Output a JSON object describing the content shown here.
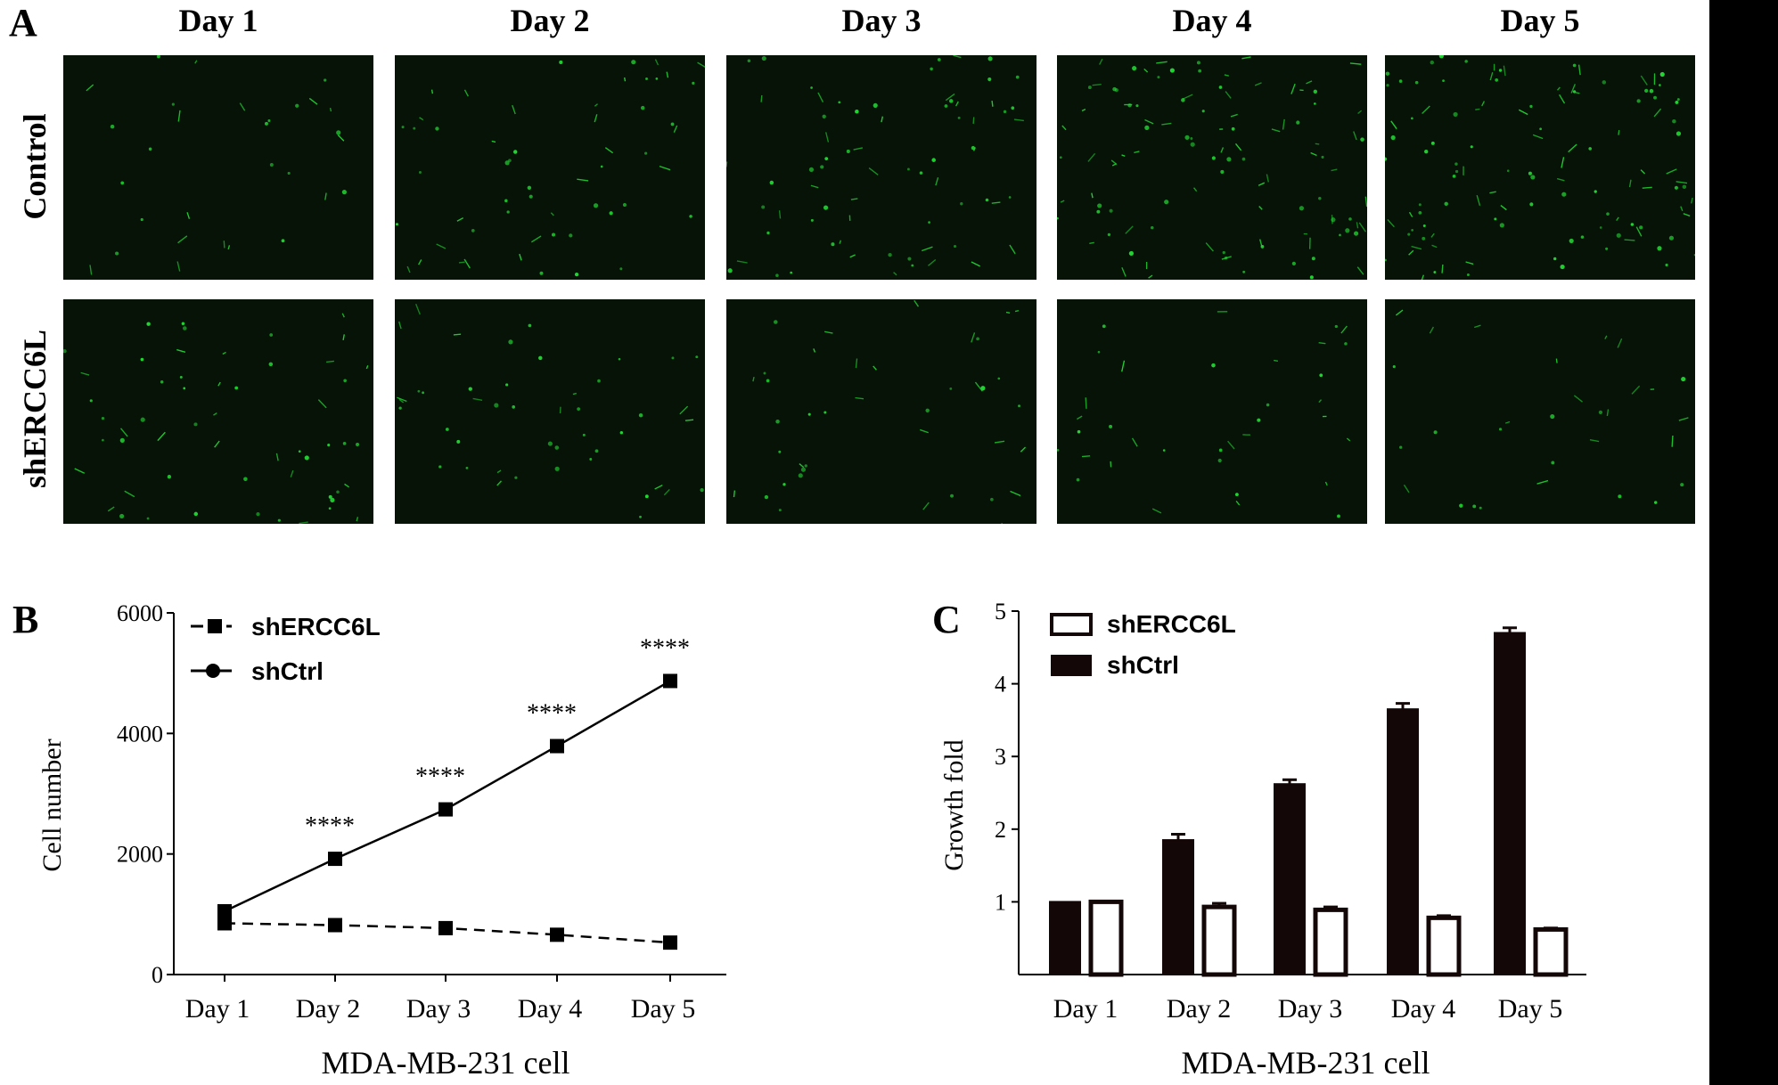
{
  "panel_a": {
    "letter": "A",
    "days": [
      "Day 1",
      "Day 2",
      "Day 3",
      "Day 4",
      "Day 5"
    ],
    "rows": [
      "Control",
      "shERCC6L"
    ],
    "image_bg": "#061306",
    "cell_color": "#22d633",
    "densities": [
      [
        30,
        55,
        70,
        105,
        115
      ],
      [
        55,
        45,
        40,
        35,
        30
      ]
    ]
  },
  "chart_data": [
    {
      "type": "line",
      "letter": "B",
      "categories": [
        "Day 1",
        "Day 2",
        "Day 3",
        "Day 4",
        "Day 5"
      ],
      "series": [
        {
          "name": "shERCC6L",
          "values": [
            850,
            820,
            770,
            660,
            530
          ],
          "style": "dashed",
          "marker": "square"
        },
        {
          "name": "shCtrl",
          "values": [
            1050,
            1920,
            2740,
            3790,
            4870
          ],
          "style": "solid",
          "marker": "square"
        }
      ],
      "annotations": [
        "****",
        "****",
        "****",
        "****"
      ],
      "ylabel": "Cell number",
      "xlabel": "MDA-MB-231 cell",
      "yticks": [
        "0",
        "2000",
        "4000",
        "6000"
      ],
      "ylim": [
        0,
        6000
      ],
      "legend_position": "top-left"
    },
    {
      "type": "bar",
      "letter": "C",
      "categories": [
        "Day 1",
        "Day 2",
        "Day 3",
        "Day 4",
        "Day 5"
      ],
      "series": [
        {
          "name": "shCtrl",
          "values": [
            1.0,
            1.85,
            2.62,
            3.65,
            4.7
          ],
          "errors": [
            0,
            0.08,
            0.06,
            0.08,
            0.07
          ],
          "fill": "#140707"
        },
        {
          "name": "shERCC6L",
          "values": [
            1.0,
            0.93,
            0.89,
            0.78,
            0.62
          ],
          "errors": [
            0,
            0.05,
            0.04,
            0.03,
            0.02
          ],
          "fill": "#ffffff"
        }
      ],
      "ylabel": "Growth fold",
      "xlabel": "MDA-MB-231 cell",
      "yticks": [
        "1",
        "2",
        "3",
        "4",
        "5"
      ],
      "ylim": [
        0,
        5
      ],
      "legend_position": "top-left"
    }
  ]
}
